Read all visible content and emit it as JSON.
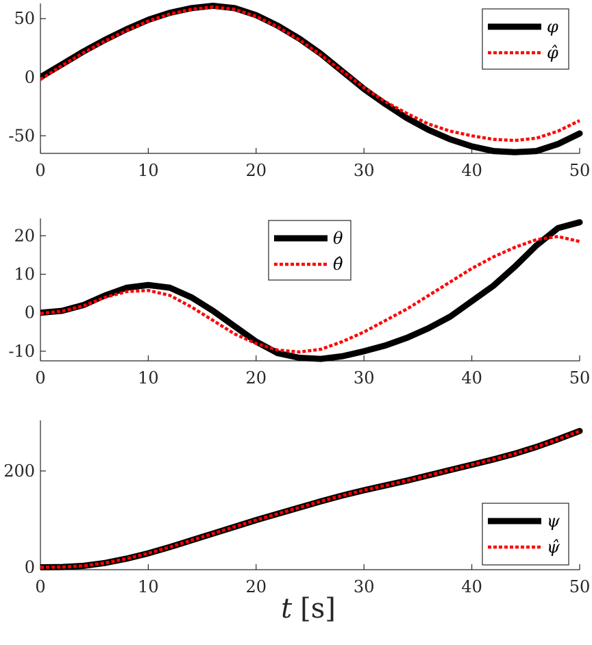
{
  "figure": {
    "xlabel_var": "t",
    "xlabel_unit": "[s]"
  },
  "colors": {
    "actual": "#000000",
    "estimate": "#ff0000",
    "axis": "#262626"
  },
  "chart_data": [
    {
      "type": "line",
      "title": "",
      "xlabel": "",
      "ylabel": "",
      "xlim": [
        0,
        50
      ],
      "ylim": [
        -65,
        63
      ],
      "xticks": [
        0,
        10,
        20,
        30,
        40,
        50
      ],
      "yticks": [
        -50,
        0,
        50
      ],
      "legend_position": "top-right",
      "grid": false,
      "series": [
        {
          "name": "φ",
          "style": "solid",
          "x": [
            0,
            2,
            4,
            6,
            8,
            10,
            12,
            14,
            16,
            18,
            20,
            22,
            24,
            26,
            28,
            30,
            32,
            34,
            36,
            38,
            40,
            42,
            44,
            46,
            48,
            50
          ],
          "y": [
            0,
            11,
            22,
            32,
            41,
            49,
            55,
            59,
            61,
            59,
            53,
            44,
            33,
            20,
            5,
            -10,
            -23,
            -35,
            -45,
            -53,
            -59,
            -63,
            -64,
            -63,
            -57,
            -48
          ]
        },
        {
          "name": "φ̂",
          "style": "dotted",
          "x": [
            0,
            2,
            4,
            6,
            8,
            10,
            12,
            14,
            16,
            18,
            20,
            22,
            24,
            26,
            28,
            30,
            32,
            34,
            36,
            38,
            40,
            42,
            44,
            46,
            48,
            50
          ],
          "y": [
            -2,
            10,
            21,
            31,
            40,
            48,
            54,
            58,
            60,
            58,
            52,
            43,
            32,
            19,
            5,
            -9,
            -21,
            -31,
            -40,
            -46,
            -50,
            -53,
            -54,
            -52,
            -46,
            -37
          ]
        }
      ]
    },
    {
      "type": "line",
      "title": "",
      "xlabel": "",
      "ylabel": "",
      "xlim": [
        0,
        50
      ],
      "ylim": [
        -12.5,
        24.5
      ],
      "xticks": [
        0,
        10,
        20,
        30,
        40,
        50
      ],
      "yticks": [
        -10,
        0,
        10,
        20
      ],
      "legend_position": "top-center",
      "grid": false,
      "series": [
        {
          "name": "θ",
          "style": "solid",
          "x": [
            0,
            2,
            4,
            6,
            8,
            10,
            12,
            14,
            16,
            18,
            20,
            22,
            24,
            26,
            28,
            30,
            32,
            34,
            36,
            38,
            40,
            42,
            44,
            46,
            48,
            50
          ],
          "y": [
            0,
            0.5,
            2,
            4.5,
            6.5,
            7.2,
            6.5,
            4,
            0.5,
            -3.5,
            -7.5,
            -10.5,
            -11.7,
            -12,
            -11.3,
            -10,
            -8.5,
            -6.5,
            -4,
            -1,
            3,
            7,
            12,
            17.5,
            22,
            23.5
          ]
        },
        {
          "name": "θ̂",
          "style": "dotted",
          "x": [
            0,
            2,
            4,
            6,
            8,
            10,
            12,
            14,
            16,
            18,
            20,
            22,
            24,
            26,
            28,
            30,
            32,
            34,
            36,
            38,
            40,
            42,
            44,
            46,
            48,
            50
          ],
          "y": [
            -0.2,
            0.4,
            1.8,
            4,
            5.5,
            5.8,
            4.5,
            1.5,
            -2,
            -5.5,
            -8,
            -9.7,
            -10.2,
            -9.5,
            -7.5,
            -5,
            -2,
            1,
            4.5,
            8,
            11.5,
            14.5,
            17,
            19,
            19.8,
            18.5
          ]
        }
      ]
    },
    {
      "type": "line",
      "title": "",
      "xlabel": "t [s]",
      "ylabel": "",
      "xlim": [
        0,
        50
      ],
      "ylim": [
        -5,
        305
      ],
      "xticks": [
        0,
        10,
        20,
        30,
        40,
        50
      ],
      "yticks": [
        0,
        200
      ],
      "legend_position": "bottom-right",
      "grid": false,
      "series": [
        {
          "name": "ψ",
          "style": "solid",
          "x": [
            0,
            2,
            4,
            6,
            8,
            10,
            12,
            14,
            16,
            18,
            20,
            22,
            24,
            26,
            28,
            30,
            32,
            34,
            36,
            38,
            40,
            42,
            44,
            46,
            48,
            50
          ],
          "y": [
            0,
            0.5,
            3,
            9,
            18,
            29,
            42,
            56,
            70,
            84,
            98,
            111,
            124,
            137,
            149,
            160,
            170,
            180,
            191,
            202,
            213,
            224,
            236,
            250,
            266,
            283
          ]
        },
        {
          "name": "ψ̂",
          "style": "dotted",
          "x": [
            0,
            2,
            4,
            6,
            8,
            10,
            12,
            14,
            16,
            18,
            20,
            22,
            24,
            26,
            28,
            30,
            32,
            34,
            36,
            38,
            40,
            42,
            44,
            46,
            48,
            50
          ],
          "y": [
            0,
            0.5,
            3,
            9,
            18,
            29,
            42,
            56,
            70,
            84,
            98,
            111,
            124,
            137,
            149,
            160,
            170,
            180,
            191,
            202,
            213,
            224,
            236,
            250,
            266,
            283
          ]
        }
      ]
    }
  ]
}
